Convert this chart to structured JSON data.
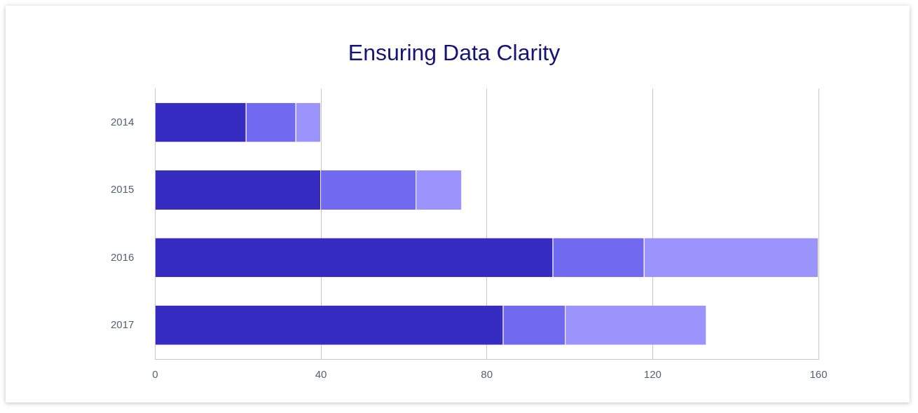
{
  "chart_data": {
    "type": "bar",
    "title": "Ensuring Data Clarity",
    "orientation": "horizontal",
    "stacked": true,
    "categories": [
      "2014",
      "2015",
      "2016",
      "2017"
    ],
    "series": [
      {
        "color": "#372cc2",
        "values": [
          22,
          40,
          96,
          84
        ]
      },
      {
        "color": "#7169ef",
        "values": [
          12,
          23,
          22,
          15
        ]
      },
      {
        "color": "#9b94fd",
        "values": [
          6,
          11,
          42,
          34
        ]
      }
    ],
    "xlim": [
      0,
      160
    ],
    "xticks": [
      0,
      40,
      80,
      120,
      160
    ],
    "grid": "x",
    "legend": false
  }
}
